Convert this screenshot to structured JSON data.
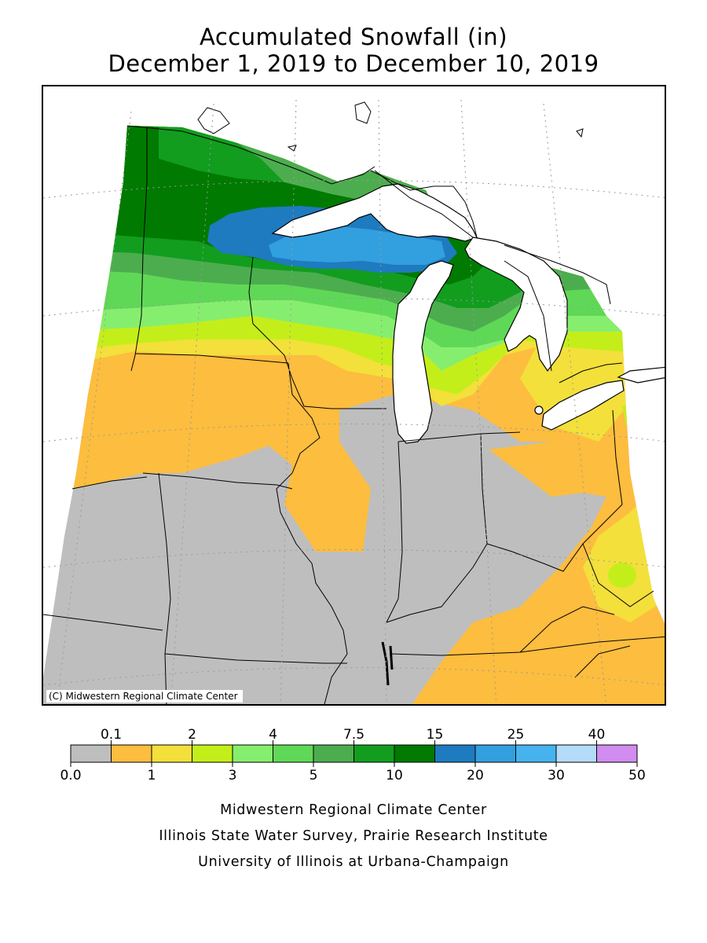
{
  "title": {
    "line1": "Accumulated Snowfall (in)",
    "line2": "December 1, 2019 to December 10, 2019"
  },
  "map": {
    "copyright": "(C) Midwestern Regional Climate Center",
    "colors": {
      "none": "#bebebe",
      "c1": "#fdbd3e",
      "c2": "#f3e03b",
      "c3": "#c4ee1a",
      "c4": "#86ee6e",
      "c5": "#5fd857",
      "c6": "#4cad4e",
      "c7": "#129d1e",
      "c8": "#007a00",
      "c9": "#1e7bbf",
      "c10": "#329fdf",
      "water": "#ffffff",
      "border": "#000000"
    }
  },
  "legend": {
    "top_labels": [
      "0.1",
      "2",
      "4",
      "7.5",
      "15",
      "25",
      "40"
    ],
    "bottom_labels": [
      "0.0",
      "1",
      "3",
      "5",
      "10",
      "20",
      "30",
      "50"
    ],
    "colors": [
      "#bebebe",
      "#fdbd3e",
      "#f3e03b",
      "#c4ee1a",
      "#86ee6e",
      "#5fd857",
      "#4cad4e",
      "#129d1e",
      "#007a00",
      "#1e7bbf",
      "#329fdf",
      "#46b3ee",
      "#b4dcf8",
      "#d08cee"
    ]
  },
  "credits": {
    "line1": "Midwestern Regional Climate Center",
    "line2": "Illinois State Water Survey, Prairie Research Institute",
    "line3": "University of Illinois at Urbana-Champaign"
  }
}
